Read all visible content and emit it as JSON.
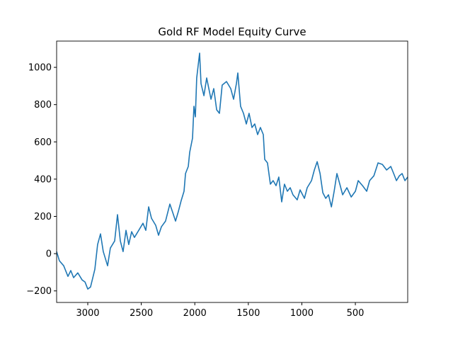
{
  "chart_data": {
    "type": "line",
    "title": "Gold RF Model Equity Curve",
    "x": [
      3291,
      3265,
      3225,
      3185,
      3159,
      3132,
      3093,
      3053,
      3026,
      3000,
      2974,
      2934,
      2908,
      2881,
      2855,
      2815,
      2789,
      2749,
      2722,
      2696,
      2670,
      2643,
      2617,
      2590,
      2564,
      2524,
      2484,
      2458,
      2431,
      2405,
      2365,
      2339,
      2312,
      2273,
      2233,
      2206,
      2180,
      2153,
      2127,
      2101,
      2087,
      2061,
      2048,
      2021,
      2008,
      1995,
      1982,
      1955,
      1942,
      1915,
      1889,
      1849,
      1823,
      1796,
      1770,
      1744,
      1704,
      1664,
      1638,
      1611,
      1598,
      1572,
      1545,
      1519,
      1493,
      1466,
      1440,
      1413,
      1387,
      1360,
      1347,
      1321,
      1294,
      1268,
      1241,
      1215,
      1188,
      1162,
      1135,
      1109,
      1083,
      1043,
      1016,
      976,
      950,
      910,
      883,
      857,
      830,
      804,
      777,
      751,
      724,
      698,
      672,
      645,
      619,
      579,
      539,
      500,
      473,
      433,
      394,
      367,
      327,
      288,
      248,
      208,
      169,
      142,
      116,
      89,
      63,
      37,
      11
    ],
    "values": [
      11,
      -38,
      -65,
      -122,
      -91,
      -129,
      -103,
      -141,
      -152,
      -190,
      -179,
      -84,
      49,
      106,
      11,
      -65,
      30,
      68,
      209,
      68,
      11,
      125,
      49,
      118,
      87,
      125,
      163,
      125,
      251,
      190,
      152,
      99,
      144,
      175,
      266,
      220,
      175,
      228,
      285,
      335,
      430,
      468,
      544,
      620,
      791,
      734,
      943,
      1076,
      913,
      848,
      943,
      829,
      886,
      772,
      753,
      905,
      924,
      886,
      829,
      913,
      970,
      791,
      753,
      696,
      753,
      677,
      696,
      639,
      677,
      639,
      506,
      487,
      373,
      392,
      365,
      411,
      278,
      373,
      335,
      354,
      316,
      289,
      342,
      297,
      354,
      392,
      449,
      494,
      430,
      327,
      297,
      316,
      251,
      335,
      430,
      373,
      316,
      354,
      304,
      335,
      392,
      365,
      335,
      392,
      418,
      487,
      479,
      449,
      468,
      430,
      392,
      418,
      430,
      392,
      411
    ],
    "color": "#1f77b4",
    "xlim": [
      3291,
      11
    ],
    "xticks": [
      3000,
      2500,
      2000,
      1500,
      1000,
      500
    ],
    "ylim": [
      -262,
      1141
    ],
    "yticks": [
      {
        "value": -200,
        "label": "−200"
      },
      0,
      200,
      400,
      600,
      800,
      1000
    ]
  }
}
